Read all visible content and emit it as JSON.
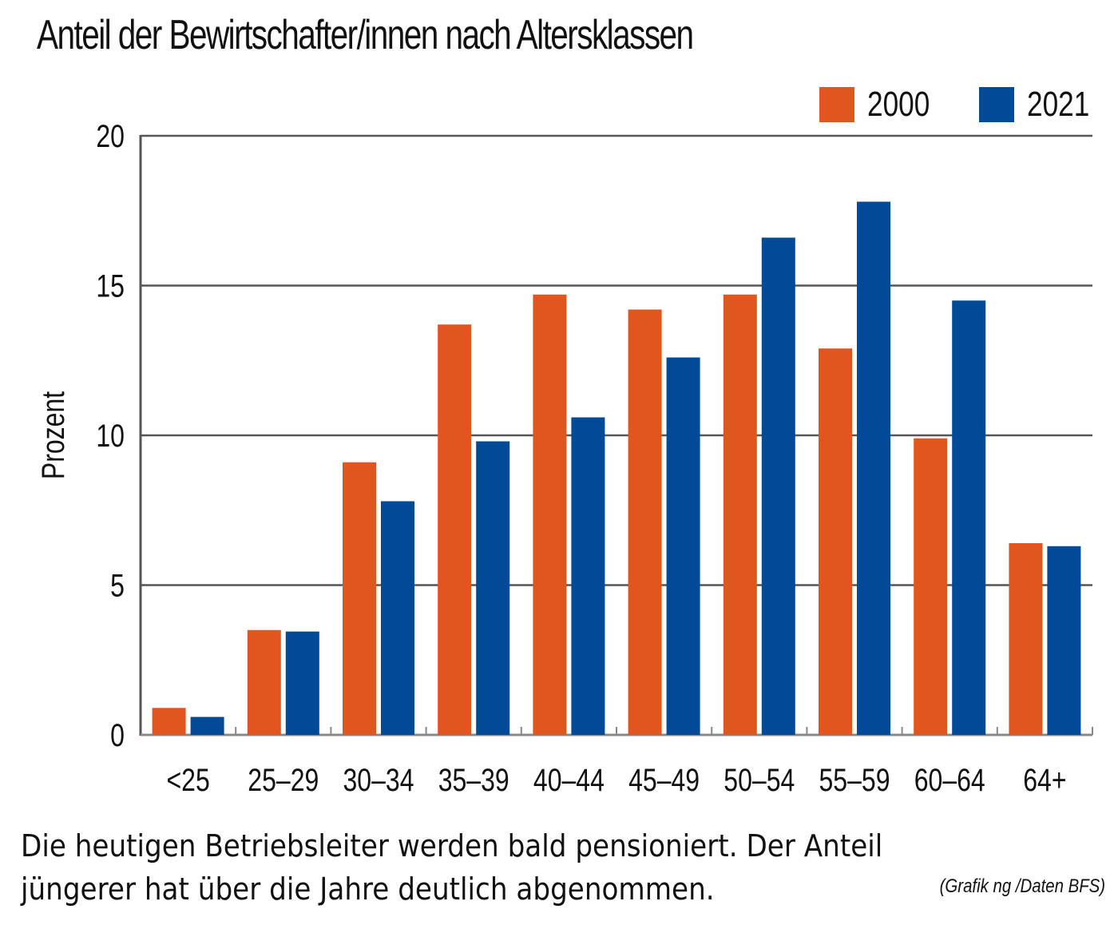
{
  "chart_data": {
    "type": "bar",
    "title": "Anteil der Bewirtschafter/innen nach Altersklassen",
    "xlabel": "",
    "ylabel": "Prozent",
    "ylim": [
      0,
      20
    ],
    "yticks": [
      0,
      5,
      10,
      15,
      20
    ],
    "grid": true,
    "legend_position": "top-right",
    "categories": [
      "<25",
      "25-29",
      "30-34",
      "35-39",
      "40-44",
      "45-49",
      "50-54",
      "55-59",
      "60-64",
      "64+"
    ],
    "series": [
      {
        "name": "2000",
        "color": "#e0561e",
        "values": [
          0.9,
          3.5,
          9.1,
          13.7,
          14.7,
          14.2,
          14.7,
          12.9,
          9.9,
          6.4
        ]
      },
      {
        "name": "2021",
        "color": "#004a97",
        "values": [
          0.6,
          3.45,
          7.8,
          9.8,
          10.6,
          12.6,
          16.6,
          17.8,
          14.5,
          6.3
        ]
      }
    ]
  },
  "caption": {
    "line1": "Die heutigen Betriebsleiter werden bald pensioniert. Der Anteil",
    "line2": "jüngerer hat über die Jahre deutlich abgenommen.",
    "source": "(Grafik ng /Daten BFS)"
  }
}
